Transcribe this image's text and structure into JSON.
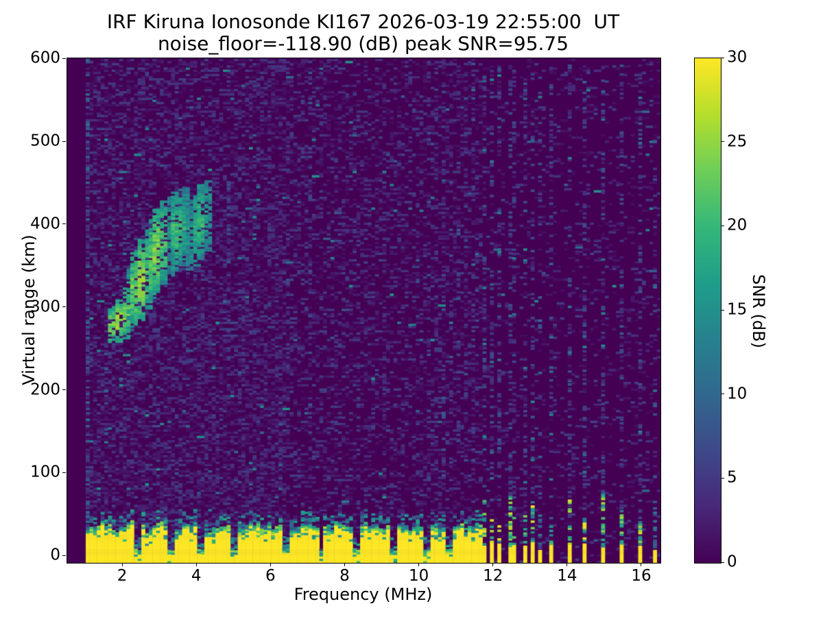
{
  "figure": {
    "title_line1": "IRF Kiruna Ionosonde KI167 2026-03-19 22:55:00  UT",
    "title_line2": "noise_floor=-118.90 (dB) peak SNR=95.75",
    "background_color": "#ffffff",
    "text_color": "#000000"
  },
  "chart_data": {
    "type": "heatmap",
    "title": "IRF Kiruna Ionosonde KI167 2026-03-19 22:55:00  UT",
    "subtitle": "noise_floor=-118.90 (dB) peak SNR=95.75",
    "station": "KI167",
    "timestamp_ut": "2026-03-19 22:55:00",
    "noise_floor_db": -118.9,
    "peak_snr_db": 95.75,
    "xlabel": "Frequency (MHz)",
    "ylabel": "Virtual range (km)",
    "xlim": [
      0.5,
      16.5
    ],
    "ylim": [
      -8,
      601
    ],
    "x_ticks": [
      2,
      4,
      6,
      8,
      10,
      12,
      14,
      16
    ],
    "y_ticks": [
      0,
      100,
      200,
      300,
      400,
      500,
      600
    ],
    "grid": false,
    "colorbar": {
      "label": "SNR (dB)",
      "ticks": [
        0,
        5,
        10,
        15,
        20,
        25,
        30
      ],
      "vmin": 0,
      "vmax": 30,
      "position": "right"
    },
    "colormap": {
      "name": "viridis",
      "stops": [
        "#440154",
        "#482878",
        "#3e4989",
        "#31688e",
        "#26828e",
        "#1f9e89",
        "#35b779",
        "#6ece58",
        "#b5de2b",
        "#fde725"
      ]
    },
    "sounding": {
      "freq_min_mhz": 1.0,
      "freq_max_mhz": 16.45,
      "freq_step_mhz": 0.1,
      "range_step_km": 2.6
    },
    "ground_clutter_band": {
      "f_start_mhz": 1.0,
      "f_end_mhz": 11.65,
      "top_km_base": 30,
      "top_km_jitter": 9,
      "snr_db": 30,
      "notch_freqs_mhz": [
        2.4,
        3.3,
        4.1,
        5.0,
        6.4,
        7.35,
        8.3,
        9.3,
        10.2,
        10.8
      ]
    },
    "rfi_stripes": {
      "dense_freqs_mhz": [
        11.75,
        11.95,
        12.15,
        12.4,
        12.6,
        12.8,
        13.0
      ],
      "sparse_freqs_mhz": [
        13.5,
        14.0,
        14.45,
        14.95,
        15.45,
        15.95
      ],
      "faint_freqs_mhz": [
        13.25,
        16.3
      ],
      "bottom_snr_db": 30,
      "solid_top_km_max": 20,
      "banded_top_km_max": 75
    },
    "echo_trace": {
      "description_km_vs_mhz": "F-region echo rising from ~260 km at 1.7 MHz to ~450 km at 4.3 MHz",
      "segments": [
        {
          "f": 1.7,
          "lo": 255,
          "hi": 300,
          "a": 0.85
        },
        {
          "f": 1.85,
          "lo": 258,
          "hi": 308,
          "a": 1.0
        },
        {
          "f": 2.0,
          "lo": 262,
          "hi": 322,
          "a": 0.9
        },
        {
          "f": 2.15,
          "lo": 272,
          "hi": 346,
          "a": 0.6
        },
        {
          "f": 2.3,
          "lo": 276,
          "hi": 368,
          "a": 0.85
        },
        {
          "f": 2.45,
          "lo": 284,
          "hi": 382,
          "a": 0.95
        },
        {
          "f": 2.6,
          "lo": 298,
          "hi": 392,
          "a": 0.75
        },
        {
          "f": 2.75,
          "lo": 308,
          "hi": 405,
          "a": 0.85
        },
        {
          "f": 2.9,
          "lo": 318,
          "hi": 418,
          "a": 0.9
        },
        {
          "f": 3.05,
          "lo": 328,
          "hi": 428,
          "a": 0.75
        },
        {
          "f": 3.2,
          "lo": 338,
          "hi": 432,
          "a": 0.45
        },
        {
          "f": 3.35,
          "lo": 344,
          "hi": 438,
          "a": 0.7
        },
        {
          "f": 3.5,
          "lo": 350,
          "hi": 442,
          "a": 0.65
        },
        {
          "f": 3.65,
          "lo": 352,
          "hi": 444,
          "a": 0.5
        },
        {
          "f": 3.8,
          "lo": 345,
          "hi": 430,
          "a": 0.45
        },
        {
          "f": 3.95,
          "lo": 350,
          "hi": 438,
          "a": 0.6
        },
        {
          "f": 4.1,
          "lo": 358,
          "hi": 448,
          "a": 0.65
        },
        {
          "f": 4.25,
          "lo": 368,
          "hi": 452,
          "a": 0.45
        }
      ]
    },
    "background_noise": {
      "p_low_band": 0.4,
      "p_mid_band": 0.28,
      "p_high_band": 0.1,
      "low_mid_split_mhz": 6.5,
      "mid_high_split_mhz": 11.7,
      "emphasis_columns": [
        {
          "f": 1.05,
          "p": 0.45,
          "vmax": 9,
          "km": [
            -8,
            600
          ]
        },
        {
          "f": 1.55,
          "p": 0.2,
          "vmax": 12,
          "km": [
            100,
            260
          ]
        },
        {
          "f": 4.85,
          "p": 0.3,
          "vmax": 7,
          "km": [
            250,
            470
          ]
        },
        {
          "f": 6.3,
          "p": 0.3,
          "vmax": 8,
          "km": [
            80,
            220
          ]
        },
        {
          "f": 7.1,
          "p": 0.15,
          "vmax": 7,
          "km": [
            0,
            600
          ]
        },
        {
          "f": 9.05,
          "p": 0.1,
          "vmax": 6,
          "km": [
            0,
            600
          ]
        },
        {
          "f": 10.25,
          "p": 0.12,
          "vmax": 7,
          "km": [
            60,
            600
          ]
        },
        {
          "f": 10.45,
          "p": 0.1,
          "vmax": 6,
          "km": [
            60,
            600
          ]
        },
        {
          "f": 10.65,
          "p": 0.12,
          "vmax": 7,
          "km": [
            60,
            600
          ]
        },
        {
          "f": 10.85,
          "p": 0.1,
          "vmax": 6,
          "km": [
            60,
            600
          ]
        },
        {
          "f": 11.05,
          "p": 0.12,
          "vmax": 7,
          "km": [
            60,
            600
          ]
        },
        {
          "f": 11.25,
          "p": 0.1,
          "vmax": 6,
          "km": [
            60,
            600
          ]
        },
        {
          "f": 11.45,
          "p": 0.12,
          "vmax": 7,
          "km": [
            60,
            600
          ]
        }
      ]
    },
    "render_seed": 42
  }
}
